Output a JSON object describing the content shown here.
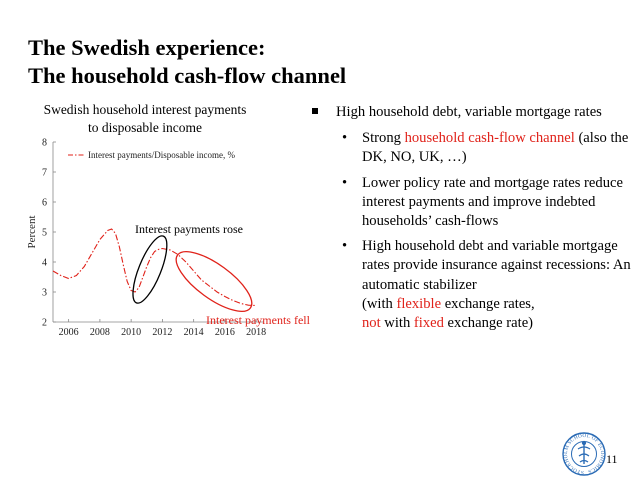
{
  "slide": {
    "title_line1": "The Swedish experience:",
    "title_line2": "The household cash-flow channel",
    "page_number": "11"
  },
  "chart": {
    "title_line1": "Swedish household interest payments",
    "title_line2": "to disposable income",
    "legend_label": "Interest payments/Disposable income, %",
    "annotation_rose": "Interest payments rose",
    "annotation_fell": "Interest payments fell",
    "series_color": "#e0221a",
    "annotation_rose_color": "#000000",
    "annotation_fell_color": "#e0221a"
  },
  "chart_data": {
    "type": "line",
    "xlabel": "",
    "ylabel": "Percent",
    "xlim": [
      2005,
      2018.5
    ],
    "ylim": [
      2,
      8
    ],
    "x_ticks": [
      "2006",
      "2008",
      "2010",
      "2012",
      "2014",
      "2016",
      "2018"
    ],
    "y_ticks": [
      "2",
      "3",
      "4",
      "5",
      "6",
      "7",
      "8"
    ],
    "grid": false,
    "legend_position": "top-left",
    "series": [
      {
        "name": "Interest payments/Disposable income, %",
        "style": "dash-dot",
        "x": [
          2005.0,
          2005.5,
          2006.0,
          2006.5,
          2007.0,
          2007.5,
          2008.0,
          2008.5,
          2008.75,
          2009.0,
          2009.25,
          2009.5,
          2009.75,
          2010.0,
          2010.25,
          2010.5,
          2010.75,
          2011.0,
          2011.25,
          2011.5,
          2011.75,
          2012.0,
          2012.5,
          2013.0,
          2013.5,
          2014.0,
          2014.5,
          2015.0,
          2015.5,
          2016.0,
          2016.5,
          2017.0,
          2017.5,
          2018.0
        ],
        "y": [
          3.7,
          3.55,
          3.45,
          3.55,
          3.85,
          4.3,
          4.75,
          5.05,
          5.1,
          4.95,
          4.5,
          3.9,
          3.35,
          3.05,
          3.0,
          3.15,
          3.5,
          3.85,
          4.15,
          4.35,
          4.42,
          4.45,
          4.4,
          4.25,
          4.0,
          3.7,
          3.4,
          3.2,
          3.0,
          2.85,
          2.72,
          2.62,
          2.56,
          2.55
        ]
      }
    ]
  },
  "bullets": {
    "main_text": "High household debt, variable mortgage rates",
    "sub1_dot": "•",
    "sub1_pre": "Strong ",
    "sub1_red": "household cash-flow channel",
    "sub1_post": " (also the DK, NO, UK, …)",
    "sub2_dot": "•",
    "sub2_text": "Lower policy rate and mortgage rates reduce interest payments and improve indebted households’ cash-flows",
    "sub3_dot": "•",
    "sub3_text": "High household debt and variable mortgage rates provide insurance against recessions: An automatic stabilizer",
    "sub3b_pre": "(with ",
    "sub3b_red1": "flexible",
    "sub3b_mid": " exchange rates,",
    "sub3b_red2": "not",
    "sub3b_mid2": " with ",
    "sub3b_red3": "fixed",
    "sub3b_post": " exchange rate)"
  },
  "logo": {
    "ring_text": "STOCKHOLM SCHOOL OF ECONOMICS",
    "color": "#2a6bb5"
  }
}
